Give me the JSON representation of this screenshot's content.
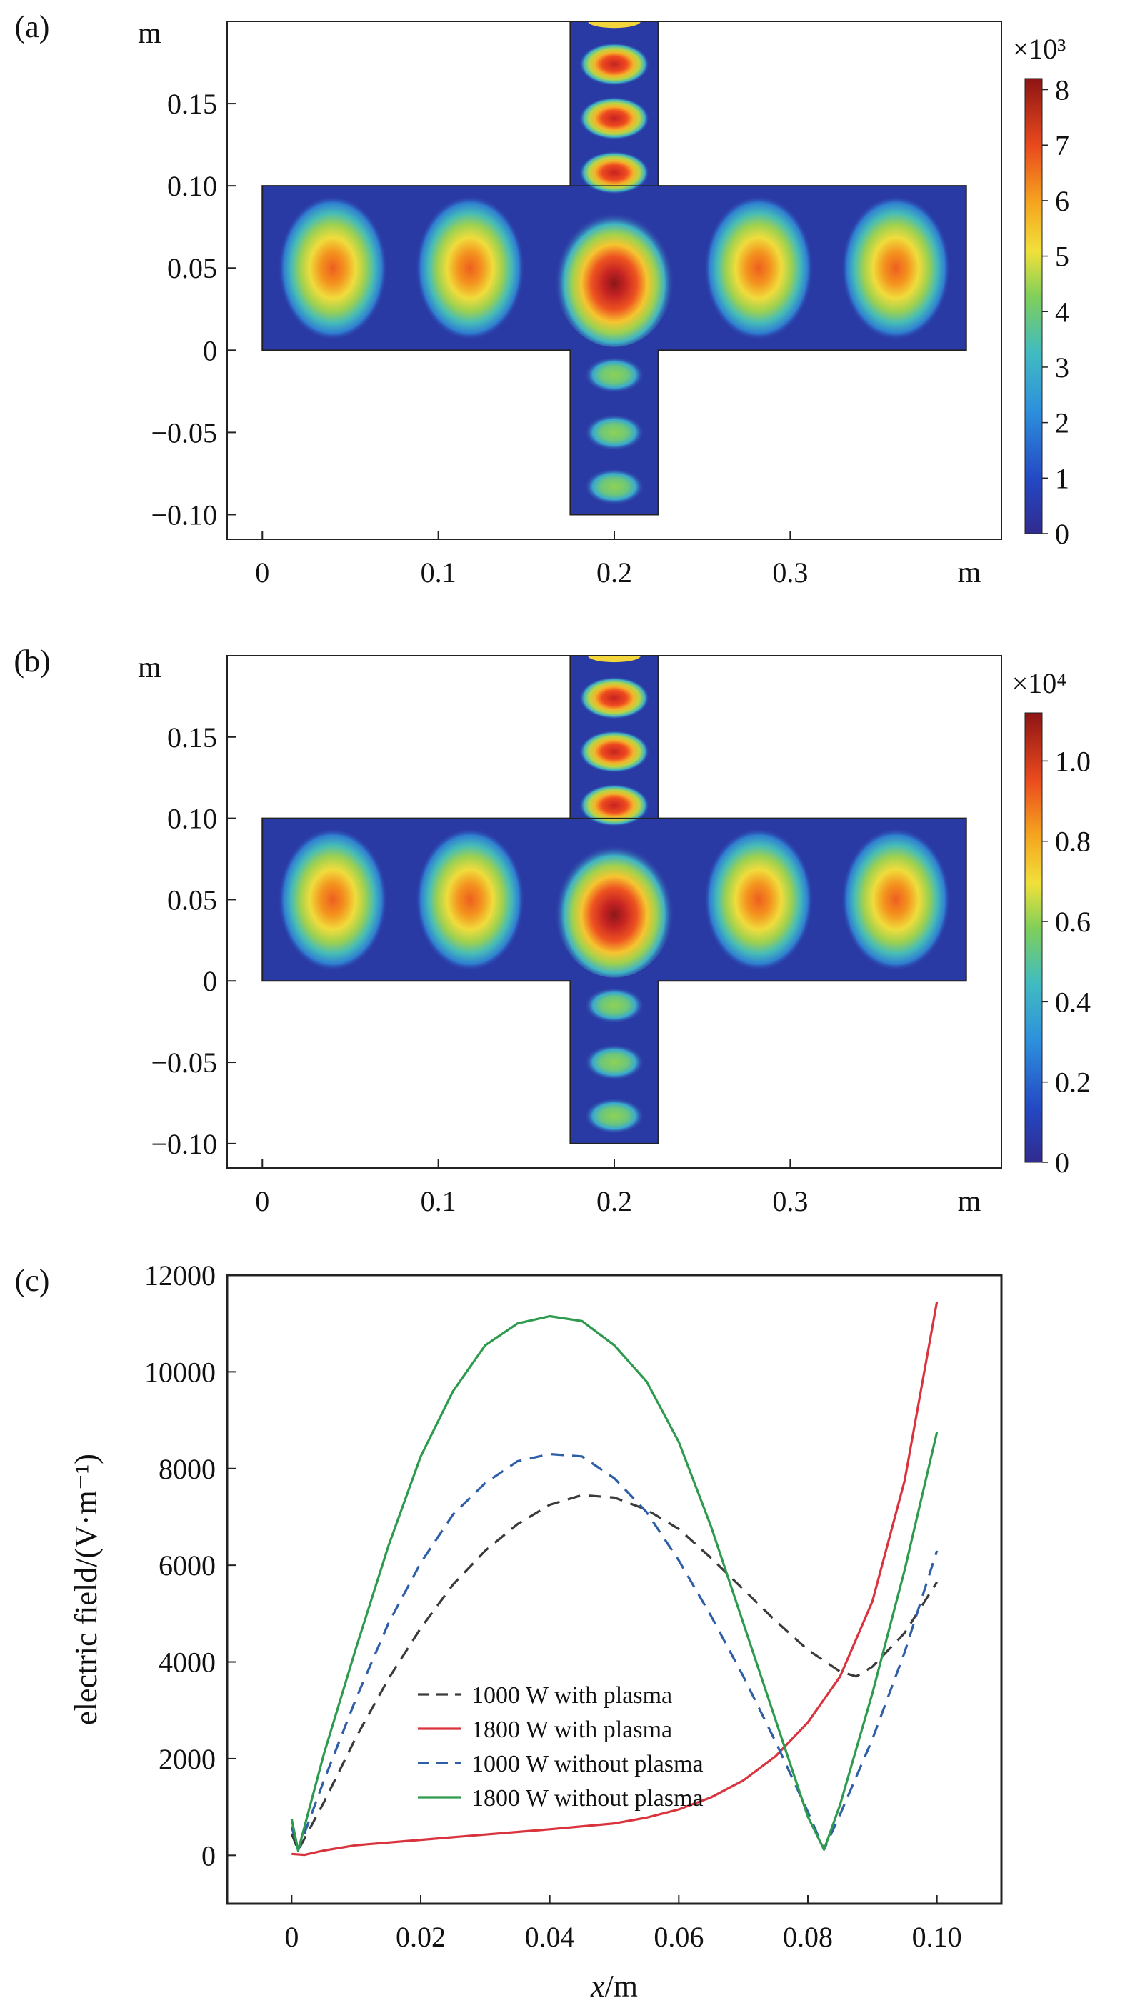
{
  "chart_data": [
    {
      "type": "heatmap",
      "panel_label": "(a)",
      "x_unit": "m",
      "y_unit": "m",
      "x_ticks": [
        "0",
        "0.1",
        "0.2",
        "0.3"
      ],
      "y_ticks": [
        "0.15",
        "0.10",
        "0.05",
        "0",
        "−0.05",
        "−0.10"
      ],
      "xlim": [
        -0.02,
        0.42
      ],
      "ylim": [
        -0.115,
        0.2
      ],
      "colorbar": {
        "multiplier": "×10³",
        "range": [
          0,
          8.2
        ],
        "ticks": [
          "0",
          "1",
          "2",
          "3",
          "4",
          "5",
          "6",
          "7",
          "8"
        ]
      },
      "field": {
        "guide_lobe_max": 6.1,
        "center_max": 8.2,
        "top_arm_lobe_max": 7.4,
        "bottom_arm_lobe_max": 3.7
      }
    },
    {
      "type": "heatmap",
      "panel_label": "(b)",
      "x_unit": "m",
      "y_unit": "m",
      "x_ticks": [
        "0",
        "0.1",
        "0.2",
        "0.3"
      ],
      "y_ticks": [
        "0.15",
        "0.10",
        "0.05",
        "0",
        "−0.05",
        "−0.10"
      ],
      "xlim": [
        -0.02,
        0.42
      ],
      "ylim": [
        -0.115,
        0.2
      ],
      "colorbar": {
        "multiplier": "×10⁴",
        "range": [
          0,
          1.12
        ],
        "ticks": [
          "0",
          "0.2",
          "0.4",
          "0.6",
          "0.8",
          "1.0"
        ]
      },
      "field": {
        "guide_lobe_max": 0.84,
        "center_max": 1.12,
        "top_arm_lobe_max": 1.0,
        "bottom_arm_lobe_max": 0.5
      }
    },
    {
      "type": "line",
      "panel_label": "(c)",
      "xlabel_italic": "x",
      "xlabel_rest": "/m",
      "ylabel": "electric field/(V·m⁻¹)",
      "xlim": [
        -0.01,
        0.11
      ],
      "ylim": [
        -1000,
        12000
      ],
      "x_ticks": [
        "0",
        "0.02",
        "0.04",
        "0.06",
        "0.08",
        "0.10"
      ],
      "y_ticks": [
        "0",
        "2000",
        "4000",
        "6000",
        "8000",
        "10000",
        "12000"
      ],
      "series": [
        {
          "name": "1000 W with plasma",
          "color": "#3a3a3a",
          "dash": true,
          "x": [
            0,
            0.001,
            0.005,
            0.01,
            0.015,
            0.02,
            0.025,
            0.03,
            0.035,
            0.04,
            0.045,
            0.05,
            0.055,
            0.06,
            0.065,
            0.07,
            0.075,
            0.08,
            0.085,
            0.0875,
            0.09,
            0.095,
            0.1
          ],
          "y": [
            450,
            100,
            1100,
            2450,
            3650,
            4700,
            5600,
            6300,
            6850,
            7250,
            7450,
            7400,
            7150,
            6750,
            6150,
            5500,
            4850,
            4250,
            3800,
            3700,
            3900,
            4600,
            5650
          ]
        },
        {
          "name": "1800 W with plasma",
          "color": "#d9343e",
          "dash": false,
          "x": [
            0,
            0.002,
            0.005,
            0.01,
            0.02,
            0.03,
            0.04,
            0.05,
            0.055,
            0.06,
            0.065,
            0.07,
            0.075,
            0.08,
            0.085,
            0.09,
            0.095,
            0.1
          ],
          "y": [
            30,
            10,
            100,
            210,
            320,
            430,
            540,
            660,
            780,
            950,
            1200,
            1550,
            2050,
            2750,
            3700,
            5250,
            7750,
            11450
          ]
        },
        {
          "name": "1000 W without plasma",
          "color": "#2f5ea8",
          "dash": true,
          "x": [
            0,
            0.001,
            0.005,
            0.01,
            0.015,
            0.02,
            0.025,
            0.03,
            0.035,
            0.04,
            0.045,
            0.05,
            0.055,
            0.06,
            0.065,
            0.07,
            0.075,
            0.08,
            0.0825,
            0.085,
            0.09,
            0.095,
            0.1
          ],
          "y": [
            600,
            100,
            1550,
            3250,
            4800,
            6050,
            7050,
            7700,
            8150,
            8300,
            8250,
            7800,
            7100,
            6100,
            4950,
            3700,
            2350,
            900,
            120,
            850,
            2400,
            4200,
            6300
          ]
        },
        {
          "name": "1800 W without plasma",
          "color": "#2e9a4e",
          "dash": false,
          "x": [
            0,
            0.001,
            0.005,
            0.01,
            0.015,
            0.02,
            0.025,
            0.03,
            0.035,
            0.04,
            0.045,
            0.05,
            0.055,
            0.06,
            0.065,
            0.07,
            0.075,
            0.08,
            0.0825,
            0.085,
            0.09,
            0.095,
            0.1
          ],
          "y": [
            750,
            100,
            2100,
            4300,
            6400,
            8250,
            9600,
            10550,
            11000,
            11150,
            11050,
            10550,
            9800,
            8550,
            6800,
            4800,
            2800,
            800,
            120,
            1050,
            3350,
            5900,
            8750
          ]
        }
      ],
      "legend_position": "lower-center"
    }
  ]
}
